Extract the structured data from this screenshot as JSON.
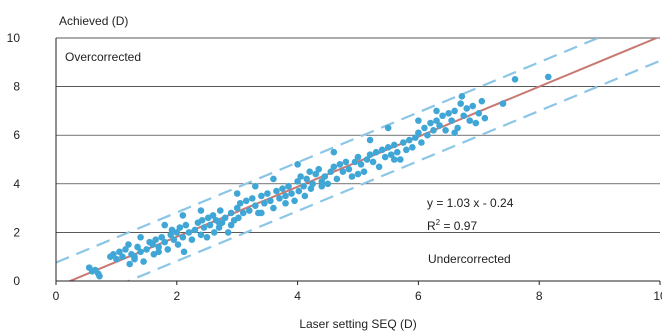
{
  "chart_data": {
    "type": "scatter",
    "ylabel": "Achieved (D)",
    "xlabel": "Laser setting SEQ (D)",
    "xlim": [
      0,
      10
    ],
    "ylim": [
      0,
      10
    ],
    "xticks": [
      "0",
      "2",
      "4",
      "6",
      "8",
      "10"
    ],
    "yticks": [
      "0",
      "2",
      "4",
      "6",
      "8",
      "10"
    ],
    "grid": "horizontal",
    "region_labels": {
      "over": "Overcorrected",
      "under": "Undercorrected"
    },
    "equation": "y = 1.03 x - 0.24",
    "r2_base": "R",
    "r2_sup": "2",
    "r2_tail": " = 0.97",
    "colors": {
      "points": "#3fa6d6",
      "fit_line": "#c87a72",
      "bands": "#8cc6e6",
      "grid": "#222222"
    },
    "fit": {
      "slope": 1.03,
      "intercept": -0.24
    },
    "band_offset": 1.0,
    "points": [
      [
        0.55,
        0.55
      ],
      [
        0.6,
        0.4
      ],
      [
        0.65,
        0.45
      ],
      [
        0.7,
        0.3
      ],
      [
        0.72,
        0.2
      ],
      [
        0.9,
        1.0
      ],
      [
        0.95,
        1.1
      ],
      [
        1.0,
        0.9
      ],
      [
        1.05,
        1.2
      ],
      [
        1.1,
        1.0
      ],
      [
        1.15,
        1.3
      ],
      [
        1.2,
        1.5
      ],
      [
        1.22,
        0.7
      ],
      [
        1.25,
        1.1
      ],
      [
        1.3,
        1.0
      ],
      [
        1.35,
        1.4
      ],
      [
        1.4,
        1.2
      ],
      [
        1.45,
        0.8
      ],
      [
        1.5,
        1.3
      ],
      [
        1.55,
        1.6
      ],
      [
        1.6,
        1.5
      ],
      [
        1.62,
        1.1
      ],
      [
        1.65,
        1.7
      ],
      [
        1.7,
        1.4
      ],
      [
        1.75,
        1.8
      ],
      [
        1.8,
        1.6
      ],
      [
        1.85,
        1.3
      ],
      [
        1.9,
        1.9
      ],
      [
        1.92,
        2.1
      ],
      [
        1.95,
        1.7
      ],
      [
        2.0,
        2.0
      ],
      [
        2.02,
        1.5
      ],
      [
        2.05,
        2.2
      ],
      [
        2.1,
        1.8
      ],
      [
        2.12,
        1.2
      ],
      [
        2.15,
        2.3
      ],
      [
        2.2,
        2.0
      ],
      [
        2.25,
        1.7
      ],
      [
        2.3,
        2.1
      ],
      [
        2.35,
        2.4
      ],
      [
        2.4,
        1.9
      ],
      [
        2.42,
        2.5
      ],
      [
        2.45,
        2.2
      ],
      [
        2.5,
        1.8
      ],
      [
        2.52,
        2.6
      ],
      [
        2.55,
        2.3
      ],
      [
        2.6,
        2.7
      ],
      [
        2.62,
        2.0
      ],
      [
        2.65,
        2.5
      ],
      [
        2.7,
        2.2
      ],
      [
        2.72,
        2.9
      ],
      [
        2.75,
        2.4
      ],
      [
        2.8,
        2.6
      ],
      [
        2.85,
        2.0
      ],
      [
        2.9,
        2.8
      ],
      [
        2.95,
        2.5
      ],
      [
        3.0,
        3.0
      ],
      [
        3.02,
        2.6
      ],
      [
        3.05,
        3.2
      ],
      [
        3.1,
        2.8
      ],
      [
        3.15,
        3.3
      ],
      [
        3.2,
        2.9
      ],
      [
        3.25,
        3.4
      ],
      [
        3.3,
        3.1
      ],
      [
        3.35,
        2.8
      ],
      [
        3.4,
        3.5
      ],
      [
        3.45,
        3.2
      ],
      [
        3.5,
        3.6
      ],
      [
        3.55,
        3.3
      ],
      [
        3.6,
        3.0
      ],
      [
        3.65,
        3.7
      ],
      [
        3.7,
        3.4
      ],
      [
        3.75,
        3.8
      ],
      [
        3.8,
        3.5
      ],
      [
        3.85,
        3.9
      ],
      [
        3.9,
        3.6
      ],
      [
        3.95,
        3.3
      ],
      [
        4.0,
        4.1
      ],
      [
        4.02,
        3.7
      ],
      [
        4.05,
        4.3
      ],
      [
        4.1,
        3.9
      ],
      [
        4.12,
        3.5
      ],
      [
        4.15,
        4.2
      ],
      [
        4.2,
        4.5
      ],
      [
        4.22,
        3.8
      ],
      [
        4.25,
        4.0
      ],
      [
        4.3,
        4.4
      ],
      [
        4.35,
        4.6
      ],
      [
        4.4,
        4.1
      ],
      [
        4.45,
        4.3
      ],
      [
        4.5,
        4.0
      ],
      [
        4.55,
        4.5
      ],
      [
        4.6,
        4.7
      ],
      [
        4.65,
        4.2
      ],
      [
        4.7,
        4.8
      ],
      [
        4.75,
        4.5
      ],
      [
        4.8,
        4.9
      ],
      [
        4.85,
        4.6
      ],
      [
        4.9,
        4.3
      ],
      [
        4.95,
        4.9
      ],
      [
        5.0,
        5.1
      ],
      [
        5.05,
        4.8
      ],
      [
        5.1,
        4.5
      ],
      [
        5.15,
        5.0
      ],
      [
        5.2,
        5.2
      ],
      [
        5.25,
        4.9
      ],
      [
        5.3,
        5.3
      ],
      [
        5.35,
        4.7
      ],
      [
        5.4,
        5.4
      ],
      [
        5.45,
        5.1
      ],
      [
        5.5,
        5.5
      ],
      [
        5.55,
        5.2
      ],
      [
        5.6,
        5.6
      ],
      [
        5.65,
        5.3
      ],
      [
        5.7,
        5.0
      ],
      [
        5.75,
        5.7
      ],
      [
        5.8,
        5.4
      ],
      [
        5.85,
        5.8
      ],
      [
        5.9,
        5.5
      ],
      [
        5.95,
        5.9
      ],
      [
        6.0,
        6.1
      ],
      [
        6.05,
        5.7
      ],
      [
        6.1,
        6.3
      ],
      [
        6.15,
        6.0
      ],
      [
        6.2,
        6.5
      ],
      [
        6.25,
        6.2
      ],
      [
        6.3,
        6.6
      ],
      [
        6.35,
        6.4
      ],
      [
        6.4,
        6.8
      ],
      [
        6.45,
        6.2
      ],
      [
        6.5,
        6.9
      ],
      [
        6.55,
        6.6
      ],
      [
        6.6,
        7.0
      ],
      [
        6.65,
        6.3
      ],
      [
        6.7,
        7.3
      ],
      [
        6.72,
        7.6
      ],
      [
        6.75,
        6.8
      ],
      [
        6.8,
        7.1
      ],
      [
        6.85,
        6.6
      ],
      [
        6.9,
        7.2
      ],
      [
        6.95,
        6.5
      ],
      [
        7.0,
        6.9
      ],
      [
        7.05,
        7.4
      ],
      [
        7.1,
        6.7
      ],
      [
        7.4,
        7.3
      ],
      [
        7.6,
        8.3
      ],
      [
        8.15,
        8.4
      ],
      [
        3.0,
        3.6
      ],
      [
        3.3,
        3.9
      ],
      [
        3.6,
        4.2
      ],
      [
        2.1,
        2.7
      ],
      [
        2.4,
        2.9
      ],
      [
        4.0,
        4.8
      ],
      [
        4.6,
        5.3
      ],
      [
        5.2,
        5.8
      ],
      [
        1.4,
        1.8
      ],
      [
        1.8,
        2.3
      ],
      [
        5.5,
        6.3
      ],
      [
        6.0,
        6.6
      ],
      [
        6.3,
        7.0
      ],
      [
        2.7,
        2.4
      ],
      [
        3.8,
        3.2
      ],
      [
        4.4,
        3.9
      ],
      [
        5.0,
        4.4
      ],
      [
        5.6,
        5.0
      ],
      [
        1.3,
        0.9
      ],
      [
        1.7,
        1.2
      ],
      [
        2.9,
        2.3
      ],
      [
        3.4,
        2.8
      ],
      [
        6.6,
        6.1
      ]
    ]
  }
}
